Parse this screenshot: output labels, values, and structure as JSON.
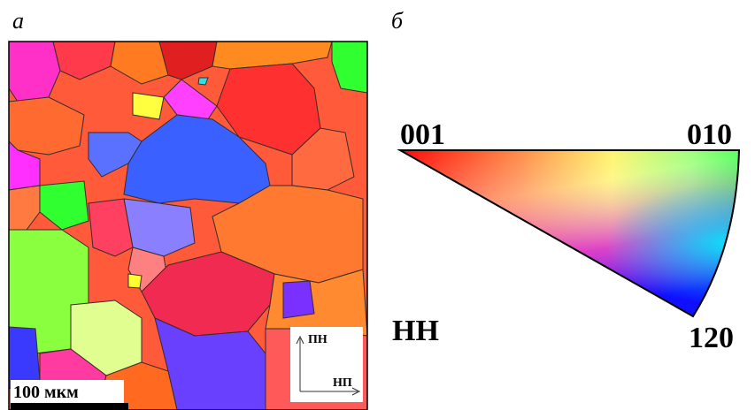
{
  "labels": {
    "panel_a": "а",
    "panel_b": "б"
  },
  "map": {
    "scale_bar": "100 мкм",
    "axis_vertical": "ПН",
    "axis_horizontal": "НП"
  },
  "triangle": {
    "corner_001": "001",
    "corner_010": "010",
    "corner_120": "120",
    "direction": "НН"
  }
}
